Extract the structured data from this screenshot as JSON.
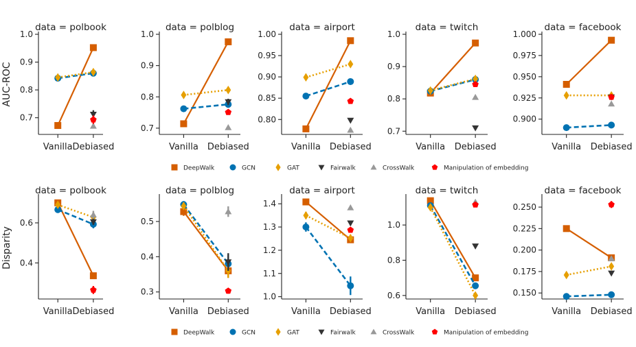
{
  "figure": {
    "row_ylabels": [
      "AUC-ROC",
      "Disparity"
    ],
    "legend": [
      {
        "label": "DeepWalk",
        "marker": "square",
        "color": "#d55e00"
      },
      {
        "label": "GCN",
        "marker": "circle",
        "color": "#0072b2"
      },
      {
        "label": "GAT",
        "marker": "diamond",
        "color": "#e69f00"
      },
      {
        "label": "Fairwalk",
        "marker": "tri-down",
        "color": "#333333"
      },
      {
        "label": "CrossWalk",
        "marker": "tri-up",
        "color": "#999999"
      },
      {
        "label": "Manipulation of embedding",
        "marker": "pentagon",
        "color": "#ff0000"
      }
    ]
  },
  "chart_data": [
    {
      "type": "line",
      "title": "data = polbook",
      "ylabel": "AUC-ROC",
      "categories": [
        "Vanilla",
        "Debiased"
      ],
      "ylim": [
        0.64,
        1.0
      ],
      "yticks": [
        0.7,
        0.8,
        0.9,
        1.0
      ],
      "ytick_labels": [
        "0.7",
        "0.8",
        "0.9",
        "1.0"
      ],
      "series": [
        {
          "name": "DeepWalk",
          "values": [
            0.672,
            0.952
          ],
          "err": [
            0.012,
            0.006
          ]
        },
        {
          "name": "GCN",
          "values": [
            0.842,
            0.86
          ],
          "err": [
            0.005,
            0.005
          ]
        },
        {
          "name": "GAT",
          "values": [
            0.845,
            0.864
          ],
          "err": [
            0.005,
            0.005
          ]
        },
        {
          "name": "Fairwalk",
          "values": [
            null,
            0.712
          ],
          "err": [
            0,
            0.015
          ]
        },
        {
          "name": "CrossWalk",
          "values": [
            null,
            0.67
          ],
          "err": [
            0,
            0.008
          ]
        },
        {
          "name": "Manipulation of embedding",
          "values": [
            null,
            0.693
          ],
          "err": [
            0,
            0.015
          ]
        }
      ]
    },
    {
      "type": "line",
      "title": "data = polblog",
      "ylabel": "",
      "categories": [
        "Vanilla",
        "Debiased"
      ],
      "ylim": [
        0.68,
        1.0
      ],
      "yticks": [
        0.7,
        0.8,
        0.9,
        1.0
      ],
      "ytick_labels": [
        "0.7",
        "0.8",
        "0.9",
        "1.0"
      ],
      "series": [
        {
          "name": "DeepWalk",
          "values": [
            0.714,
            0.976
          ],
          "err": [
            0.004,
            0.004
          ]
        },
        {
          "name": "GCN",
          "values": [
            0.762,
            0.776
          ],
          "err": [
            0.007,
            0.007
          ]
        },
        {
          "name": "GAT",
          "values": [
            0.806,
            0.822
          ],
          "err": [
            0.006,
            0.006
          ]
        },
        {
          "name": "Fairwalk",
          "values": [
            null,
            0.784
          ],
          "err": [
            0,
            0.01
          ]
        },
        {
          "name": "CrossWalk",
          "values": [
            null,
            0.702
          ],
          "err": [
            0,
            0.004
          ]
        },
        {
          "name": "Manipulation of embedding",
          "values": [
            null,
            0.751
          ],
          "err": [
            0,
            0.006
          ]
        }
      ]
    },
    {
      "type": "line",
      "title": "data = airport",
      "ylabel": "",
      "categories": [
        "Vanilla",
        "Debiased"
      ],
      "ylim": [
        0.765,
        1.0
      ],
      "yticks": [
        0.8,
        0.85,
        0.9,
        0.95,
        1.0
      ],
      "ytick_labels": [
        "0.80",
        "0.85",
        "0.90",
        "0.95",
        "1.00"
      ],
      "series": [
        {
          "name": "DeepWalk",
          "values": [
            0.778,
            0.985
          ],
          "err": [
            0.003,
            0.003
          ]
        },
        {
          "name": "GCN",
          "values": [
            0.855,
            0.889
          ],
          "err": [
            0.004,
            0.004
          ]
        },
        {
          "name": "GAT",
          "values": [
            0.899,
            0.93
          ],
          "err": [
            0.004,
            0.004
          ]
        },
        {
          "name": "Fairwalk",
          "values": [
            null,
            0.798
          ],
          "err": [
            0,
            0.004
          ]
        },
        {
          "name": "CrossWalk",
          "values": [
            null,
            0.775
          ],
          "err": [
            0,
            0.004
          ]
        },
        {
          "name": "Manipulation of embedding",
          "values": [
            null,
            0.843
          ],
          "err": [
            0,
            0.004
          ]
        }
      ]
    },
    {
      "type": "line",
      "title": "data = twitch",
      "ylabel": "",
      "categories": [
        "Vanilla",
        "Debiased"
      ],
      "ylim": [
        0.69,
        1.0
      ],
      "yticks": [
        0.7,
        0.8,
        0.9,
        1.0
      ],
      "ytick_labels": [
        "0.7",
        "0.8",
        "0.9",
        "1.0"
      ],
      "series": [
        {
          "name": "DeepWalk",
          "values": [
            0.818,
            0.973
          ],
          "err": [
            0.004,
            0.004
          ]
        },
        {
          "name": "GCN",
          "values": [
            0.824,
            0.86
          ],
          "err": [
            0.004,
            0.004
          ]
        },
        {
          "name": "GAT",
          "values": [
            0.826,
            0.862
          ],
          "err": [
            0.004,
            0.004
          ]
        },
        {
          "name": "Fairwalk",
          "values": [
            null,
            0.71
          ],
          "err": [
            0,
            0.004
          ]
        },
        {
          "name": "CrossWalk",
          "values": [
            null,
            0.805
          ],
          "err": [
            0,
            0.004
          ]
        },
        {
          "name": "Manipulation of embedding",
          "values": [
            null,
            0.845
          ],
          "err": [
            0,
            0.004
          ]
        }
      ]
    },
    {
      "type": "line",
      "title": "data = facebook",
      "ylabel": "",
      "categories": [
        "Vanilla",
        "Debiased"
      ],
      "ylim": [
        0.882,
        1.0
      ],
      "yticks": [
        0.9,
        0.925,
        0.95,
        0.975,
        1.0
      ],
      "ytick_labels": [
        "0.900",
        "0.925",
        "0.950",
        "0.975",
        "1.000"
      ],
      "series": [
        {
          "name": "DeepWalk",
          "values": [
            0.941,
            0.993
          ],
          "err": [
            0.002,
            0.002
          ]
        },
        {
          "name": "GCN",
          "values": [
            0.89,
            0.893
          ],
          "err": [
            0.002,
            0.002
          ]
        },
        {
          "name": "GAT",
          "values": [
            0.928,
            0.928
          ],
          "err": [
            0.002,
            0.002
          ]
        },
        {
          "name": "Fairwalk",
          "values": [
            null,
            0.926
          ],
          "err": [
            0,
            0.002
          ]
        },
        {
          "name": "CrossWalk",
          "values": [
            null,
            0.918
          ],
          "err": [
            0,
            0.002
          ]
        },
        {
          "name": "Manipulation of embedding",
          "values": [
            null,
            0.926
          ],
          "err": [
            0,
            0.002
          ]
        }
      ]
    },
    {
      "type": "line",
      "title": "data = polbook",
      "ylabel": "Disparity",
      "categories": [
        "Vanilla",
        "Debiased"
      ],
      "ylim": [
        0.22,
        0.73
      ],
      "yticks": [
        0.4,
        0.6
      ],
      "ytick_labels": [
        "0.4",
        "0.6"
      ],
      "series": [
        {
          "name": "DeepWalk",
          "values": [
            0.7,
            0.336
          ],
          "err": [
            0.01,
            0.015
          ]
        },
        {
          "name": "GCN",
          "values": [
            0.666,
            0.593
          ],
          "err": [
            0.015,
            0.02
          ]
        },
        {
          "name": "GAT",
          "values": [
            0.69,
            0.628
          ],
          "err": [
            0.012,
            0.025
          ]
        },
        {
          "name": "Fairwalk",
          "values": [
            null,
            0.605
          ],
          "err": [
            0,
            0.015
          ]
        },
        {
          "name": "CrossWalk",
          "values": [
            null,
            0.64
          ],
          "err": [
            0,
            0.02
          ]
        },
        {
          "name": "Manipulation of embedding",
          "values": [
            null,
            0.265
          ],
          "err": [
            0,
            0.02
          ]
        }
      ]
    },
    {
      "type": "line",
      "title": "data = polblog",
      "ylabel": "",
      "categories": [
        "Vanilla",
        "Debiased"
      ],
      "ylim": [
        0.28,
        0.57
      ],
      "yticks": [
        0.3,
        0.4,
        0.5
      ],
      "ytick_labels": [
        "0.3",
        "0.4",
        "0.5"
      ],
      "series": [
        {
          "name": "DeepWalk",
          "values": [
            0.528,
            0.36
          ],
          "err": [
            0.012,
            0.02
          ]
        },
        {
          "name": "GCN",
          "values": [
            0.548,
            0.38
          ],
          "err": [
            0.01,
            0.025
          ]
        },
        {
          "name": "GAT",
          "values": [
            0.544,
            0.36
          ],
          "err": [
            0.01,
            0.02
          ]
        },
        {
          "name": "Fairwalk",
          "values": [
            null,
            0.385
          ],
          "err": [
            0,
            0.025
          ]
        },
        {
          "name": "CrossWalk",
          "values": [
            null,
            0.528
          ],
          "err": [
            0,
            0.015
          ]
        },
        {
          "name": "Manipulation of embedding",
          "values": [
            null,
            0.303
          ],
          "err": [
            0,
            0.008
          ]
        }
      ]
    },
    {
      "type": "line",
      "title": "data = airport",
      "ylabel": "",
      "categories": [
        "Vanilla",
        "Debiased"
      ],
      "ylim": [
        0.99,
        1.43
      ],
      "yticks": [
        1.0,
        1.1,
        1.2,
        1.3,
        1.4
      ],
      "ytick_labels": [
        "1.0",
        "1.1",
        "1.2",
        "1.3",
        "1.4"
      ],
      "series": [
        {
          "name": "DeepWalk",
          "values": [
            1.408,
            1.245
          ],
          "err": [
            0.005,
            0.01
          ]
        },
        {
          "name": "GCN",
          "values": [
            1.3,
            1.047
          ],
          "err": [
            0.02,
            0.04
          ]
        },
        {
          "name": "GAT",
          "values": [
            1.35,
            1.252
          ],
          "err": [
            0.015,
            0.015
          ]
        },
        {
          "name": "Fairwalk",
          "values": [
            null,
            1.317
          ],
          "err": [
            0,
            0.01
          ]
        },
        {
          "name": "CrossWalk",
          "values": [
            null,
            1.383
          ],
          "err": [
            0,
            0.005
          ]
        },
        {
          "name": "Manipulation of embedding",
          "values": [
            null,
            1.287
          ],
          "err": [
            0,
            0.01
          ]
        }
      ]
    },
    {
      "type": "line",
      "title": "data = twitch",
      "ylabel": "",
      "categories": [
        "Vanilla",
        "Debiased"
      ],
      "ylim": [
        0.58,
        1.16
      ],
      "yticks": [
        0.6,
        0.8,
        1.0
      ],
      "ytick_labels": [
        "0.6",
        "0.8",
        "1.0"
      ],
      "series": [
        {
          "name": "DeepWalk",
          "values": [
            1.138,
            0.7
          ],
          "err": [
            0.005,
            0.01
          ]
        },
        {
          "name": "GCN",
          "values": [
            1.11,
            0.655
          ],
          "err": [
            0.01,
            0.01
          ]
        },
        {
          "name": "GAT",
          "values": [
            1.1,
            0.6
          ],
          "err": [
            0.01,
            0.015
          ]
        },
        {
          "name": "Fairwalk",
          "values": [
            null,
            0.88
          ],
          "err": [
            0,
            0.005
          ]
        },
        {
          "name": "CrossWalk",
          "values": [
            null,
            1.13
          ],
          "err": [
            0,
            0.005
          ]
        },
        {
          "name": "Manipulation of embedding",
          "values": [
            null,
            1.115
          ],
          "err": [
            0,
            0.015
          ]
        }
      ]
    },
    {
      "type": "line",
      "title": "data = facebook",
      "ylabel": "",
      "categories": [
        "Vanilla",
        "Debiased"
      ],
      "ylim": [
        0.143,
        0.262
      ],
      "yticks": [
        0.15,
        0.175,
        0.2,
        0.225,
        0.25
      ],
      "ytick_labels": [
        "0.150",
        "0.175",
        "0.200",
        "0.225",
        "0.250"
      ],
      "series": [
        {
          "name": "DeepWalk",
          "values": [
            0.225,
            0.191
          ],
          "err": [
            0.001,
            0.002
          ]
        },
        {
          "name": "GCN",
          "values": [
            0.146,
            0.148
          ],
          "err": [
            0.001,
            0.001
          ]
        },
        {
          "name": "GAT",
          "values": [
            0.171,
            0.181
          ],
          "err": [
            0.002,
            0.003
          ]
        },
        {
          "name": "Fairwalk",
          "values": [
            null,
            0.173
          ],
          "err": [
            0,
            0.002
          ]
        },
        {
          "name": "CrossWalk",
          "values": [
            null,
            0.19
          ],
          "err": [
            0,
            0.002
          ]
        },
        {
          "name": "Manipulation of embedding",
          "values": [
            null,
            0.253
          ],
          "err": [
            0,
            0.004
          ]
        }
      ]
    }
  ]
}
